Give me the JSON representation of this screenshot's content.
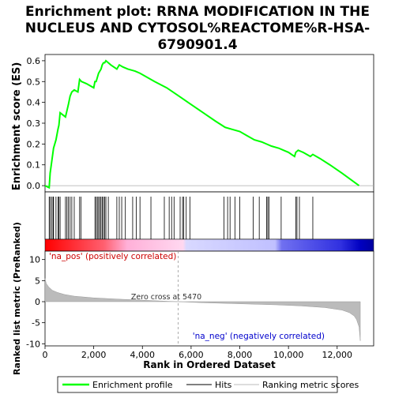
{
  "chart_data": {
    "type": "line",
    "title": "Enrichment plot: RRNA MODIFICATION IN THE NUCLEUS AND CYTOSOL%REACTOME%R-HSA-6790901.4",
    "title_lines": [
      "Enrichment plot: RRNA MODIFICATION IN THE",
      "NUCLEUS AND CYTOSOL%REACTOME%R-HSA-",
      "6790901.4"
    ],
    "top_panel": {
      "ylabel": "Enrichment score (ES)",
      "ylim": [
        -0.03,
        0.63
      ],
      "yticks": [
        0.0,
        0.1,
        0.2,
        0.3,
        0.4,
        0.5,
        0.6
      ],
      "ytick_labels": [
        "0.0",
        "0.1",
        "0.2",
        "0.3",
        "0.4",
        "0.5",
        "0.6"
      ],
      "series": [
        {
          "name": "Enrichment profile",
          "color": "#00ff00",
          "x": [
            0,
            170,
            210,
            280,
            350,
            450,
            530,
            570,
            620,
            840,
            900,
            960,
            1030,
            1100,
            1200,
            1350,
            1420,
            1500,
            1700,
            2000,
            2050,
            2100,
            2150,
            2200,
            2250,
            2300,
            2350,
            2400,
            2450,
            2500,
            2600,
            2700,
            2950,
            3050,
            3200,
            3400,
            3700,
            3900,
            4500,
            5000,
            5500,
            6000,
            6500,
            7000,
            7400,
            7700,
            8000,
            8300,
            8600,
            8900,
            9100,
            9300,
            9600,
            9800,
            10000,
            10250,
            10300,
            10400,
            10600,
            10900,
            11000,
            11300,
            11700,
            12200,
            12900
          ],
          "y": [
            0.0,
            -0.01,
            0.06,
            0.12,
            0.18,
            0.22,
            0.27,
            0.29,
            0.35,
            0.33,
            0.36,
            0.39,
            0.43,
            0.45,
            0.46,
            0.45,
            0.51,
            0.5,
            0.49,
            0.47,
            0.5,
            0.5,
            0.52,
            0.54,
            0.55,
            0.56,
            0.58,
            0.59,
            0.59,
            0.6,
            0.59,
            0.58,
            0.56,
            0.58,
            0.57,
            0.56,
            0.55,
            0.54,
            0.5,
            0.47,
            0.43,
            0.39,
            0.35,
            0.31,
            0.28,
            0.27,
            0.26,
            0.24,
            0.22,
            0.21,
            0.2,
            0.19,
            0.18,
            0.17,
            0.16,
            0.14,
            0.16,
            0.17,
            0.16,
            0.14,
            0.15,
            0.13,
            0.1,
            0.06,
            0.0
          ]
        }
      ]
    },
    "hits_x": [
      170,
      210,
      280,
      330,
      350,
      450,
      530,
      570,
      620,
      840,
      900,
      960,
      1030,
      1100,
      1200,
      1420,
      1480,
      2050,
      2100,
      2150,
      2200,
      2250,
      2300,
      2350,
      2400,
      2450,
      2500,
      2600,
      2950,
      3050,
      3150,
      3300,
      3600,
      3750,
      3900,
      4350,
      4900,
      5100,
      5200,
      5300,
      5550,
      5650,
      5700,
      5800,
      5950,
      7350,
      7500,
      7600,
      7800,
      8000,
      8550,
      8800,
      9100,
      9150,
      9200,
      9700,
      10300,
      10350,
      10450,
      11000
    ],
    "lower_panel": {
      "ylabel": "Ranked list metric (PreRanked)",
      "xlabel": "Rank in Ordered Dataset",
      "ylim": [
        -10.5,
        12
      ],
      "yticks": [
        -10,
        -5,
        0,
        5,
        10
      ],
      "ytick_labels": [
        "-10",
        "-5",
        "0",
        "5",
        "10"
      ],
      "xlim": [
        0,
        13500
      ],
      "xticks": [
        0,
        2000,
        4000,
        6000,
        8000,
        10000,
        12000
      ],
      "xtick_labels": [
        "0",
        "2,000",
        "4,000",
        "6,000",
        "8,000",
        "10,000",
        "12,000"
      ],
      "zero_cross": 5470,
      "zero_cross_label": "Zero cross at 5470",
      "pos_label": "'na_pos' (positively correlated)",
      "neg_label": "'na_neg' (negatively correlated)",
      "metric_x": [
        0,
        50,
        150,
        300,
        500,
        800,
        1200,
        2000,
        3000,
        4000,
        5000,
        5470,
        6500,
        8000,
        9500,
        10500,
        11500,
        12200,
        12500,
        12700,
        12800,
        12900,
        12950
      ],
      "metric_y": [
        5.5,
        4.3,
        3.5,
        2.7,
        2.2,
        1.7,
        1.3,
        0.9,
        0.6,
        0.35,
        0.1,
        0.0,
        -0.25,
        -0.5,
        -0.75,
        -1.0,
        -1.4,
        -2.0,
        -2.6,
        -3.4,
        -4.3,
        -6.0,
        -9.3
      ]
    },
    "legend": {
      "items": [
        {
          "label": "Enrichment profile",
          "color": "#00ff00"
        },
        {
          "label": "Hits",
          "color": "#000000"
        },
        {
          "label": "Ranking metric scores",
          "color": "#bbbbbb"
        }
      ]
    },
    "total_ranks": 12950
  }
}
